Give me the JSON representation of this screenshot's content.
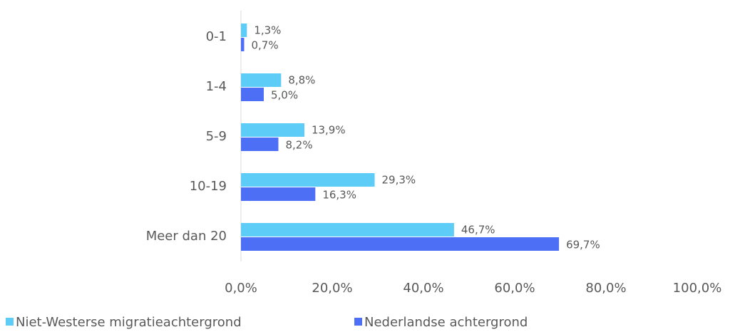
{
  "chart_data": {
    "type": "bar",
    "orientation": "horizontal",
    "categories": [
      "0-1",
      "1-4",
      "5-9",
      "10-19",
      "Meer dan 20"
    ],
    "series": [
      {
        "name": "Niet-Westerse migratieachtergrond",
        "color": "#5dcdf8",
        "values": [
          1.3,
          8.8,
          13.9,
          29.3,
          46.7
        ],
        "value_labels": [
          "1,3%",
          "8,8%",
          "13,9%",
          "29,3%",
          "46,7%"
        ]
      },
      {
        "name": "Nederlandse achtergrond",
        "color": "#4d6ff6",
        "values": [
          0.7,
          5.0,
          8.2,
          16.3,
          69.7
        ],
        "value_labels": [
          "0,7%",
          "5,0%",
          "8,2%",
          "16,3%",
          "69,7%"
        ]
      }
    ],
    "xlim": [
      0,
      100
    ],
    "xticks": [
      {
        "value": 0,
        "label": "0,0%"
      },
      {
        "value": 20,
        "label": "20,0%"
      },
      {
        "value": 40,
        "label": "40,0%"
      },
      {
        "value": 60,
        "label": "60,0%"
      },
      {
        "value": 80,
        "label": "80,0%"
      },
      {
        "value": 100,
        "label": "100,0%"
      }
    ],
    "legend": "bottom"
  }
}
